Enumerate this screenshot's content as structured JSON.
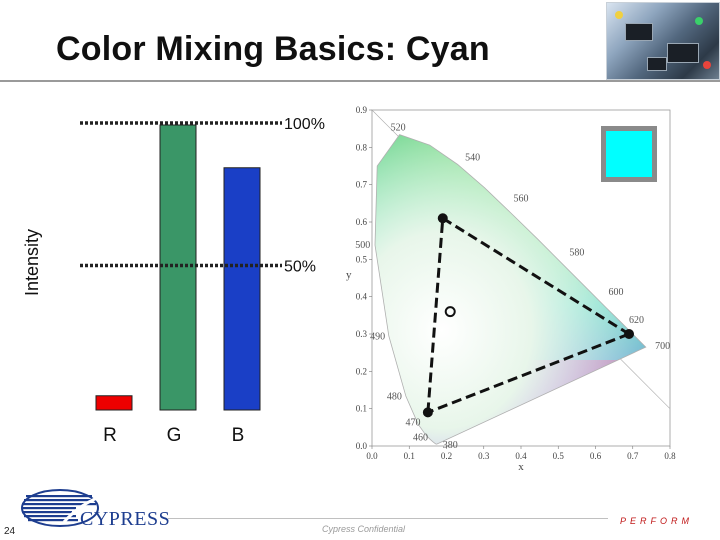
{
  "slide": {
    "title": "Color Mixing Basics: Cyan",
    "page_number": "24",
    "footer_text": "Cypress Confidential",
    "tagline": "PERFORM",
    "logo_text": "CYPRESS"
  },
  "colors": {
    "red_bar": "#ee0000",
    "green_bar": "#3a9667",
    "blue_bar": "#1a3fc6",
    "cyan_swatch": "#00ffff",
    "logo_blue": "#1d3d8f",
    "tagline_red": "#c01818"
  },
  "chart_data": [
    {
      "type": "bar",
      "ylabel": "Intensity",
      "categories": [
        "R",
        "G",
        "B"
      ],
      "values": [
        5,
        100,
        85
      ],
      "ylim": [
        0,
        100
      ],
      "reference_lines": [
        {
          "label": "100%",
          "value": 100
        },
        {
          "label": "50%",
          "value": 50
        }
      ]
    },
    {
      "type": "scatter",
      "xlim": [
        0.0,
        0.8
      ],
      "ylim": [
        0.0,
        0.9
      ],
      "xlabel": "x",
      "ylabel": "y",
      "x_ticks": [
        "0.0",
        "0.1",
        "0.2",
        "0.3",
        "0.4",
        "0.5",
        "0.6",
        "0.7",
        "0.8"
      ],
      "y_ticks": [
        "0.0",
        "0.1",
        "0.2",
        "0.3",
        "0.4",
        "0.5",
        "0.6",
        "0.7",
        "0.8",
        "0.9"
      ],
      "wavelength_labels": [
        "380",
        "460",
        "470",
        "480",
        "490",
        "500",
        "520",
        "540",
        "560",
        "580",
        "600",
        "620",
        "700"
      ],
      "triangle_points": [
        {
          "x": 0.19,
          "y": 0.61
        },
        {
          "x": 0.69,
          "y": 0.3
        },
        {
          "x": 0.15,
          "y": 0.09
        }
      ],
      "mixed_point": {
        "x": 0.21,
        "y": 0.36
      }
    }
  ]
}
